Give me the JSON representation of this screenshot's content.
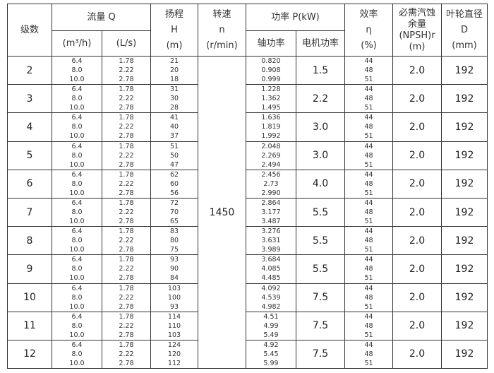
{
  "header": {
    "stages": "级数",
    "flow": "流量 Q",
    "flow_unit1": "(m³/h)",
    "flow_unit2": "(L/s)",
    "head": "扬程",
    "head_sym": "H",
    "head_unit": "(m)",
    "speed": "转速",
    "speed_sym": "n",
    "speed_unit": "(r/min)",
    "power": "功率 P(kW)",
    "shaft_power": "轴功率",
    "motor_power": "电机功率",
    "eff": "效率",
    "eff_sym": "η",
    "eff_unit": "(%)",
    "npsh": "必需汽蚀余量",
    "npsh_sym": "(NPSH)r",
    "npsh_unit": "(m)",
    "impeller": "叶轮直径",
    "impeller_sym": "D",
    "impeller_unit": "(mm)"
  },
  "speed_value": "1450",
  "rows": [
    {
      "stage": "2",
      "q1": [
        "6.4",
        "8.0",
        "10.0"
      ],
      "q2": [
        "1.78",
        "2.22",
        "2.78"
      ],
      "h": [
        "21",
        "20",
        "18"
      ],
      "shaft": [
        "0.820",
        "0.908",
        "0.999"
      ],
      "motor": "1.5",
      "eff": [
        "44",
        "48",
        "51"
      ],
      "npsh": "2.0",
      "d": "192"
    },
    {
      "stage": "3",
      "q1": [
        "6.4",
        "8.0",
        "10.0"
      ],
      "q2": [
        "1.78",
        "2.22",
        "2.78"
      ],
      "h": [
        "31",
        "30",
        "28"
      ],
      "shaft": [
        "1.228",
        "1.362",
        "1.495"
      ],
      "motor": "2.2",
      "eff": [
        "44",
        "48",
        "51"
      ],
      "npsh": "2.0",
      "d": "192"
    },
    {
      "stage": "4",
      "q1": [
        "6.4",
        "8.0",
        "10.0"
      ],
      "q2": [
        "1.78",
        "2.22",
        "2.78"
      ],
      "h": [
        "41",
        "40",
        "37"
      ],
      "shaft": [
        "1.636",
        "1.819",
        "1.992"
      ],
      "motor": "3.0",
      "eff": [
        "44",
        "48",
        "51"
      ],
      "npsh": "2.0",
      "d": "192"
    },
    {
      "stage": "5",
      "q1": [
        "6.4",
        "8.0",
        "10.0"
      ],
      "q2": [
        "1.78",
        "2.22",
        "2.78"
      ],
      "h": [
        "51",
        "50",
        "47"
      ],
      "shaft": [
        "2.048",
        "2.269",
        "2.494"
      ],
      "motor": "3.0",
      "eff": [
        "44",
        "48",
        "51"
      ],
      "npsh": "2.0",
      "d": "192"
    },
    {
      "stage": "6",
      "q1": [
        "6.4",
        "8.0",
        "10.0"
      ],
      "q2": [
        "1.78",
        "2.22",
        "2.78"
      ],
      "h": [
        "62",
        "60",
        "56"
      ],
      "shaft": [
        "2.456",
        "2.73",
        "2.990"
      ],
      "motor": "4.0",
      "eff": [
        "44",
        "48",
        "51"
      ],
      "npsh": "2.0",
      "d": "192"
    },
    {
      "stage": "7",
      "q1": [
        "6.4",
        "8.0",
        "10.0"
      ],
      "q2": [
        "1.78",
        "2.22",
        "2.78"
      ],
      "h": [
        "72",
        "70",
        "65"
      ],
      "shaft": [
        "2.864",
        "3.177",
        "3.487"
      ],
      "motor": "5.5",
      "eff": [
        "44",
        "48",
        "51"
      ],
      "npsh": "2.0",
      "d": "192"
    },
    {
      "stage": "8",
      "q1": [
        "6.4",
        "8.0",
        "10.0"
      ],
      "q2": [
        "1.78",
        "2.22",
        "2.78"
      ],
      "h": [
        "83",
        "80",
        "75"
      ],
      "shaft": [
        "3.276",
        "3.631",
        "3.989"
      ],
      "motor": "5.5",
      "eff": [
        "44",
        "48",
        "51"
      ],
      "npsh": "2.0",
      "d": "192"
    },
    {
      "stage": "9",
      "q1": [
        "6.4",
        "8.0",
        "10.0"
      ],
      "q2": [
        "1.78",
        "2.22",
        "2.78"
      ],
      "h": [
        "93",
        "90",
        "84"
      ],
      "shaft": [
        "3.684",
        "4.085",
        "4.485"
      ],
      "motor": "5.5",
      "eff": [
        "44",
        "48",
        "51"
      ],
      "npsh": "2.0",
      "d": "192"
    },
    {
      "stage": "10",
      "q1": [
        "6.4",
        "8.0",
        "10.0"
      ],
      "q2": [
        "1.78",
        "2.22",
        "2.78"
      ],
      "h": [
        "103",
        "100",
        "93"
      ],
      "shaft": [
        "4.092",
        "4.539",
        "4.982"
      ],
      "motor": "7.5",
      "eff": [
        "44",
        "48",
        "51"
      ],
      "npsh": "2.0",
      "d": "192"
    },
    {
      "stage": "11",
      "q1": [
        "6.4",
        "8.0",
        "10.0"
      ],
      "q2": [
        "1.78",
        "2.22",
        "2.78"
      ],
      "h": [
        "114",
        "110",
        "103"
      ],
      "shaft": [
        "4.51",
        "4.99",
        "5.49"
      ],
      "motor": "7.5",
      "eff": [
        "44",
        "48",
        "51"
      ],
      "npsh": "2.0",
      "d": "192"
    },
    {
      "stage": "12",
      "q1": [
        "6.4",
        "8.0",
        "10.0"
      ],
      "q2": [
        "1.78",
        "2.22",
        "2.78"
      ],
      "h": [
        "124",
        "120",
        "112"
      ],
      "shaft": [
        "4.92",
        "5.45",
        "5.99"
      ],
      "motor": "7.5",
      "eff": [
        "44",
        "48",
        "51"
      ],
      "npsh": "2.0",
      "d": "192"
    }
  ]
}
